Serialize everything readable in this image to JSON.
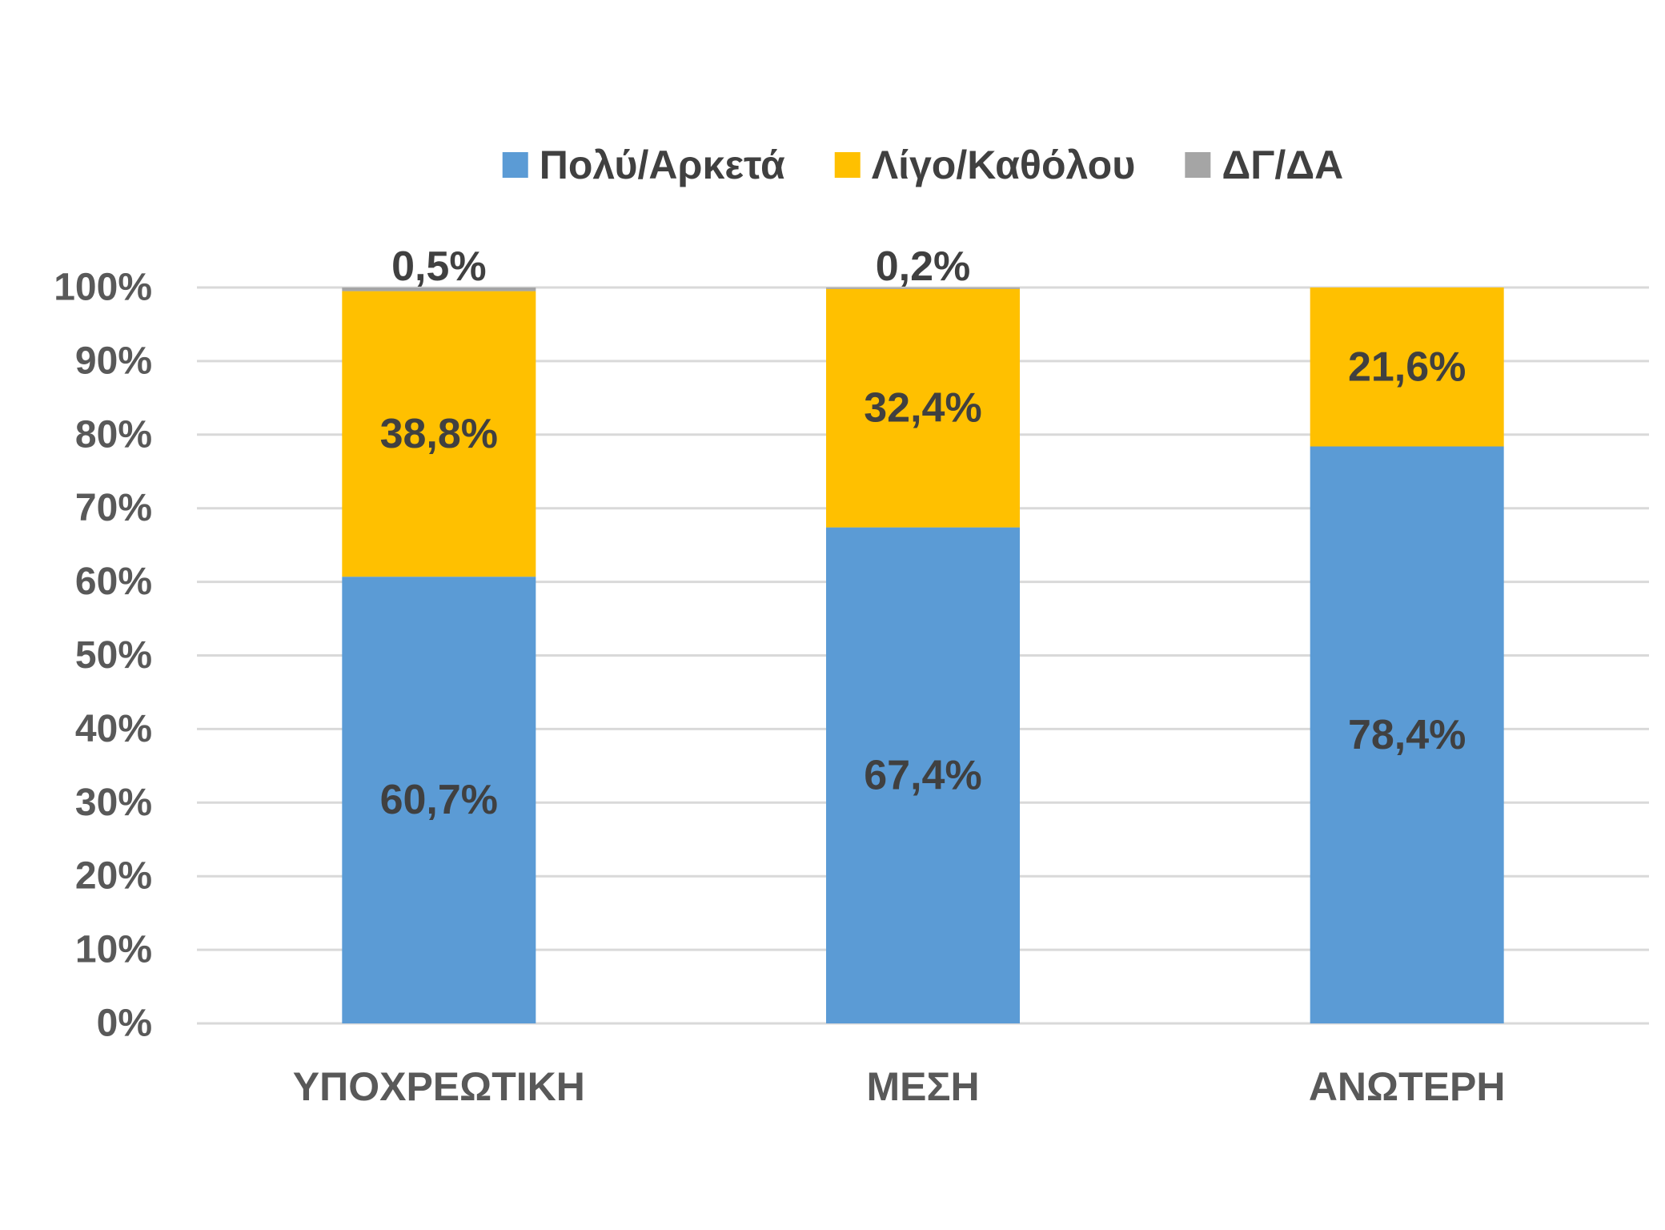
{
  "chart_data": {
    "type": "bar",
    "stacked": true,
    "categories": [
      "ΥΠΟΧΡΕΩΤΙΚΗ",
      "ΜΕΣΗ",
      "ΑΝΩΤΕΡΗ"
    ],
    "series": [
      {
        "name": "Πολύ/Αρκετά",
        "color": "#5b9bd5",
        "values": [
          60.7,
          67.4,
          78.4
        ],
        "labels": [
          "60,7%",
          "67,4%",
          "78,4%"
        ]
      },
      {
        "name": "Λίγο/Καθόλου",
        "color": "#ffc000",
        "values": [
          38.8,
          32.4,
          21.6
        ],
        "labels": [
          "38,8%",
          "32,4%",
          "21,6%"
        ]
      },
      {
        "name": "ΔΓ/ΔΑ",
        "color": "#a5a5a5",
        "values": [
          0.5,
          0.2,
          0
        ],
        "labels": [
          "0,5%",
          "0,2%",
          ""
        ]
      }
    ],
    "yticks": [
      "0%",
      "10%",
      "20%",
      "30%",
      "40%",
      "50%",
      "60%",
      "70%",
      "80%",
      "90%",
      "100%"
    ],
    "ylim": [
      0,
      100
    ],
    "grid": true,
    "legend_position": "top"
  }
}
